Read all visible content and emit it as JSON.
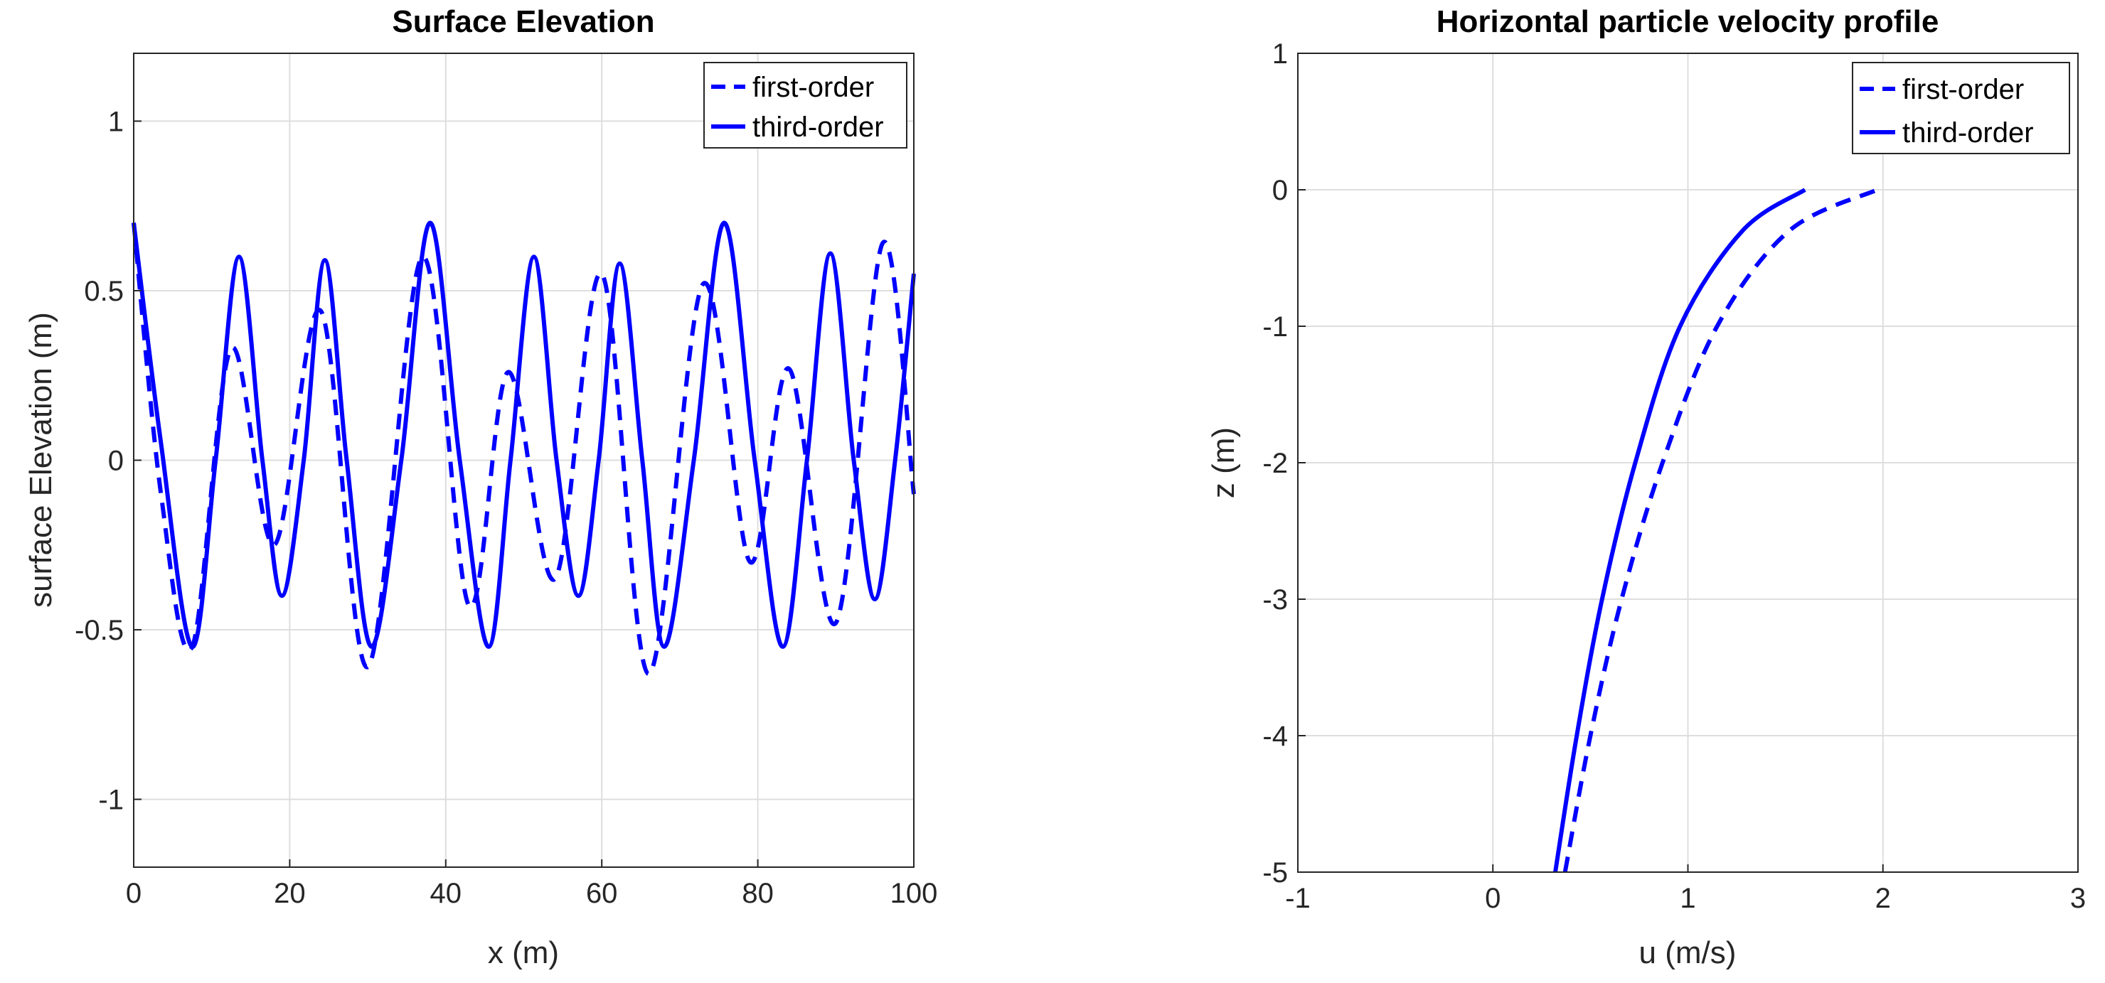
{
  "chart_data": [
    {
      "type": "line",
      "title": "Surface Elevation",
      "xlabel": "x (m)",
      "ylabel": "surface Elevation (m)",
      "xlim": [
        0,
        100
      ],
      "ylim": [
        -1.2,
        1.2
      ],
      "xticks": [
        0,
        20,
        40,
        60,
        80,
        100
      ],
      "yticks": [
        -1,
        -0.5,
        0,
        0.5,
        1
      ],
      "grid": true,
      "legend_position": "top-right",
      "series": [
        {
          "name": "first-order",
          "style": "dashed",
          "x": [
            0,
            3.5,
            7.5,
            12.5,
            18,
            24,
            30,
            37,
            43,
            48,
            54,
            60,
            66,
            73,
            79,
            84,
            90,
            96,
            100
          ],
          "y": [
            0.7,
            -0.1,
            -0.55,
            0.33,
            -0.25,
            0.44,
            -0.61,
            0.6,
            -0.43,
            0.26,
            -0.35,
            0.55,
            -0.63,
            0.52,
            -0.3,
            0.27,
            -0.48,
            0.64,
            -0.1
          ]
        },
        {
          "name": "third-order",
          "style": "solid",
          "x": [
            0,
            3.5,
            7.5,
            10.5,
            13.5,
            16.5,
            19,
            21.8,
            24.5,
            27.3,
            30.5,
            34.3,
            38,
            41.8,
            45.5,
            48.3,
            51.3,
            54.2,
            57,
            59.6,
            62.3,
            65.2,
            68,
            71.8,
            75.7,
            79.6,
            83.2,
            86.3,
            89.3,
            92.3,
            95,
            97.6,
            100
          ],
          "y": [
            0.7,
            0.05,
            -0.55,
            0.0,
            0.6,
            0.0,
            -0.4,
            0.0,
            0.59,
            0.0,
            -0.55,
            0.0,
            0.7,
            0.0,
            -0.55,
            0.0,
            0.6,
            0.0,
            -0.4,
            0.0,
            0.58,
            0.0,
            -0.55,
            0.0,
            0.7,
            0.0,
            -0.55,
            0.0,
            0.61,
            0.0,
            -0.41,
            0.0,
            0.55
          ]
        }
      ]
    },
    {
      "type": "line",
      "title": "Horizontal particle velocity profile",
      "xlabel": "u (m/s)",
      "ylabel": "z (m)",
      "xlim": [
        -1,
        3
      ],
      "ylim": [
        -5,
        1
      ],
      "xticks": [
        -1,
        0,
        1,
        2,
        3
      ],
      "yticks": [
        -5,
        -4,
        -3,
        -2,
        -1,
        0,
        1
      ],
      "grid": true,
      "legend_position": "top-right",
      "series": [
        {
          "name": "first-order",
          "style": "dashed",
          "x": [
            0.37,
            0.5,
            0.66,
            0.87,
            1.15,
            1.52,
            1.97
          ],
          "y": [
            -5,
            -4,
            -3,
            -2,
            -1,
            -0.3,
            0
          ]
        },
        {
          "name": "third-order",
          "style": "solid",
          "x": [
            0.32,
            0.43,
            0.56,
            0.73,
            0.96,
            1.28,
            1.6
          ],
          "y": [
            -5,
            -4,
            -3,
            -2,
            -1,
            -0.3,
            0
          ]
        }
      ]
    }
  ]
}
